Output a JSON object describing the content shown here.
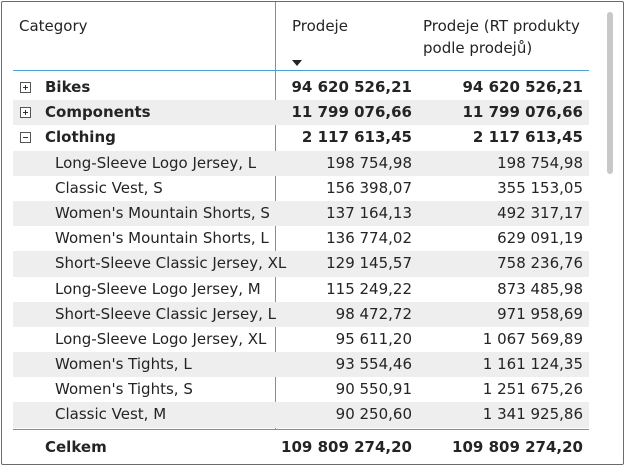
{
  "header": {
    "col_category": "Category",
    "col_sales": "Prodeje",
    "col_rt": "Prodeje (RT produkty podle prodejů)"
  },
  "rows": [
    {
      "label": "Bikes",
      "sales": "94 620 526,21",
      "rt": "94 620 526,21",
      "state": "collapsed"
    },
    {
      "label": "Components",
      "sales": "11 799 076,66",
      "rt": "11 799 076,66",
      "state": "collapsed"
    },
    {
      "label": "Clothing",
      "sales": "2 117 613,45",
      "rt": "2 117 613,45",
      "state": "expanded"
    },
    {
      "label": "Long-Sleeve Logo Jersey, L",
      "sales": "198 754,98",
      "rt": "198 754,98"
    },
    {
      "label": "Classic Vest, S",
      "sales": "156 398,07",
      "rt": "355 153,05"
    },
    {
      "label": "Women's Mountain Shorts, S",
      "sales": "137 164,13",
      "rt": "492 317,17"
    },
    {
      "label": "Women's Mountain Shorts, L",
      "sales": "136 774,02",
      "rt": "629 091,19"
    },
    {
      "label": "Short-Sleeve Classic Jersey, XL",
      "sales": "129 145,57",
      "rt": "758 236,76"
    },
    {
      "label": "Long-Sleeve Logo Jersey, M",
      "sales": "115 249,22",
      "rt": "873 485,98"
    },
    {
      "label": "Short-Sleeve Classic Jersey, L",
      "sales": "98 472,72",
      "rt": "971 958,69"
    },
    {
      "label": "Long-Sleeve Logo Jersey, XL",
      "sales": "95 611,20",
      "rt": "1 067 569,89"
    },
    {
      "label": "Women's Tights, L",
      "sales": "93 554,46",
      "rt": "1 161 124,35"
    },
    {
      "label": "Women's Tights, S",
      "sales": "90 550,91",
      "rt": "1 251 675,26"
    },
    {
      "label": "Classic Vest, M",
      "sales": "90 250,60",
      "rt": "1 341 925,86"
    }
  ],
  "total": {
    "label": "Celkem",
    "sales": "109 809 274,20",
    "rt": "109 809 274,20"
  },
  "colors": {
    "accent": "#4a9fd8",
    "row_shade": "#eeeeee"
  }
}
